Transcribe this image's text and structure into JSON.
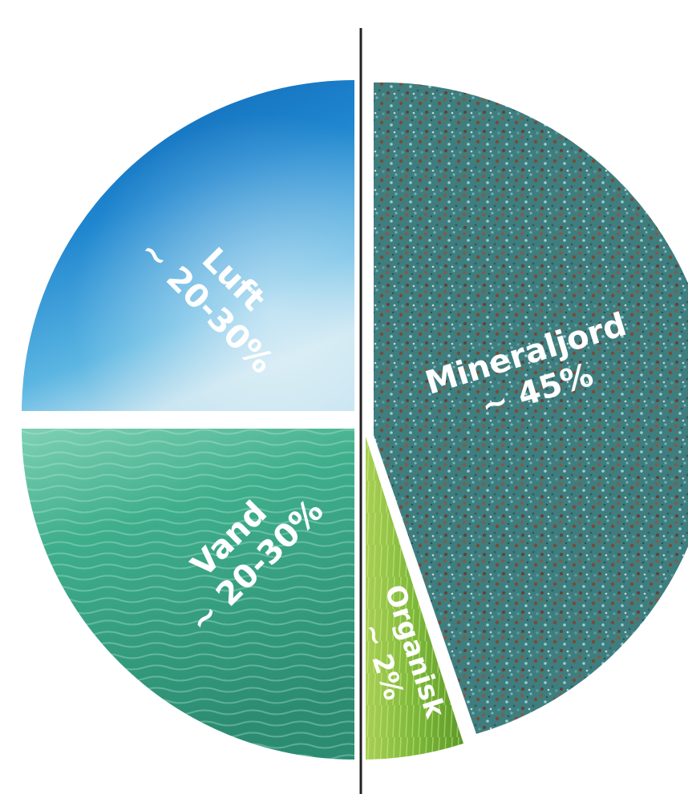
{
  "chart_data": {
    "type": "pie",
    "slices": [
      {
        "label": "Luft",
        "value_text": "~ 20-30%",
        "value": 25,
        "color": "#1a78c2"
      },
      {
        "label": "Vand",
        "value_text": "~ 20-30%",
        "value": 25,
        "color": "#3aa58a"
      },
      {
        "label": "Organisk",
        "value_text": "~ 2%",
        "value": 2,
        "color": "#8cbf3f"
      },
      {
        "label": "Mineraljord",
        "value_text": "~ 45%",
        "value": 45,
        "color": "#3d7a7c"
      }
    ]
  }
}
